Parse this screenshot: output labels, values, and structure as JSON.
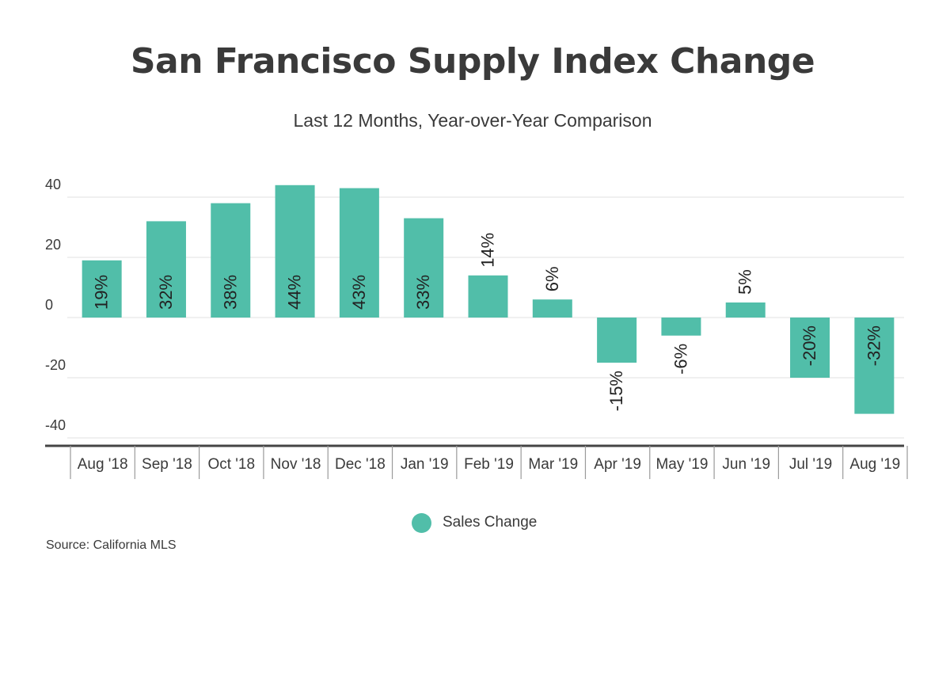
{
  "colors": {
    "bar": "#51bea9",
    "grid": "#e2e2e2",
    "axis": "#444444",
    "text": "#3a3a3a"
  },
  "legend": {
    "label": "Sales Change"
  },
  "source": {
    "text": "Source:  California MLS"
  },
  "chart_data": {
    "type": "bar",
    "title": "San Francisco Supply Index Change",
    "subtitle": "Last 12 Months, Year-over-Year Comparison",
    "xlabel": "",
    "ylabel": "",
    "ylim": [
      -40,
      40
    ],
    "yticks": [
      40,
      20,
      0,
      -20,
      -40
    ],
    "grid": true,
    "legend_position": "bottom",
    "categories": [
      "Aug '18",
      "Sep '18",
      "Oct '18",
      "Nov '18",
      "Dec '18",
      "Jan '19",
      "Feb '19",
      "Mar '19",
      "Apr '19",
      "May '19",
      "Jun '19",
      "Jul '19",
      "Aug '19"
    ],
    "series": [
      {
        "name": "Sales Change",
        "values": [
          19,
          32,
          38,
          44,
          43,
          33,
          14,
          6,
          -15,
          -6,
          5,
          -20,
          -32
        ],
        "labels": [
          "19%",
          "32%",
          "38%",
          "44%",
          "43%",
          "33%",
          "14%",
          "6%",
          "-15%",
          "-6%",
          "5%",
          "-20%",
          "-32%"
        ]
      }
    ]
  }
}
